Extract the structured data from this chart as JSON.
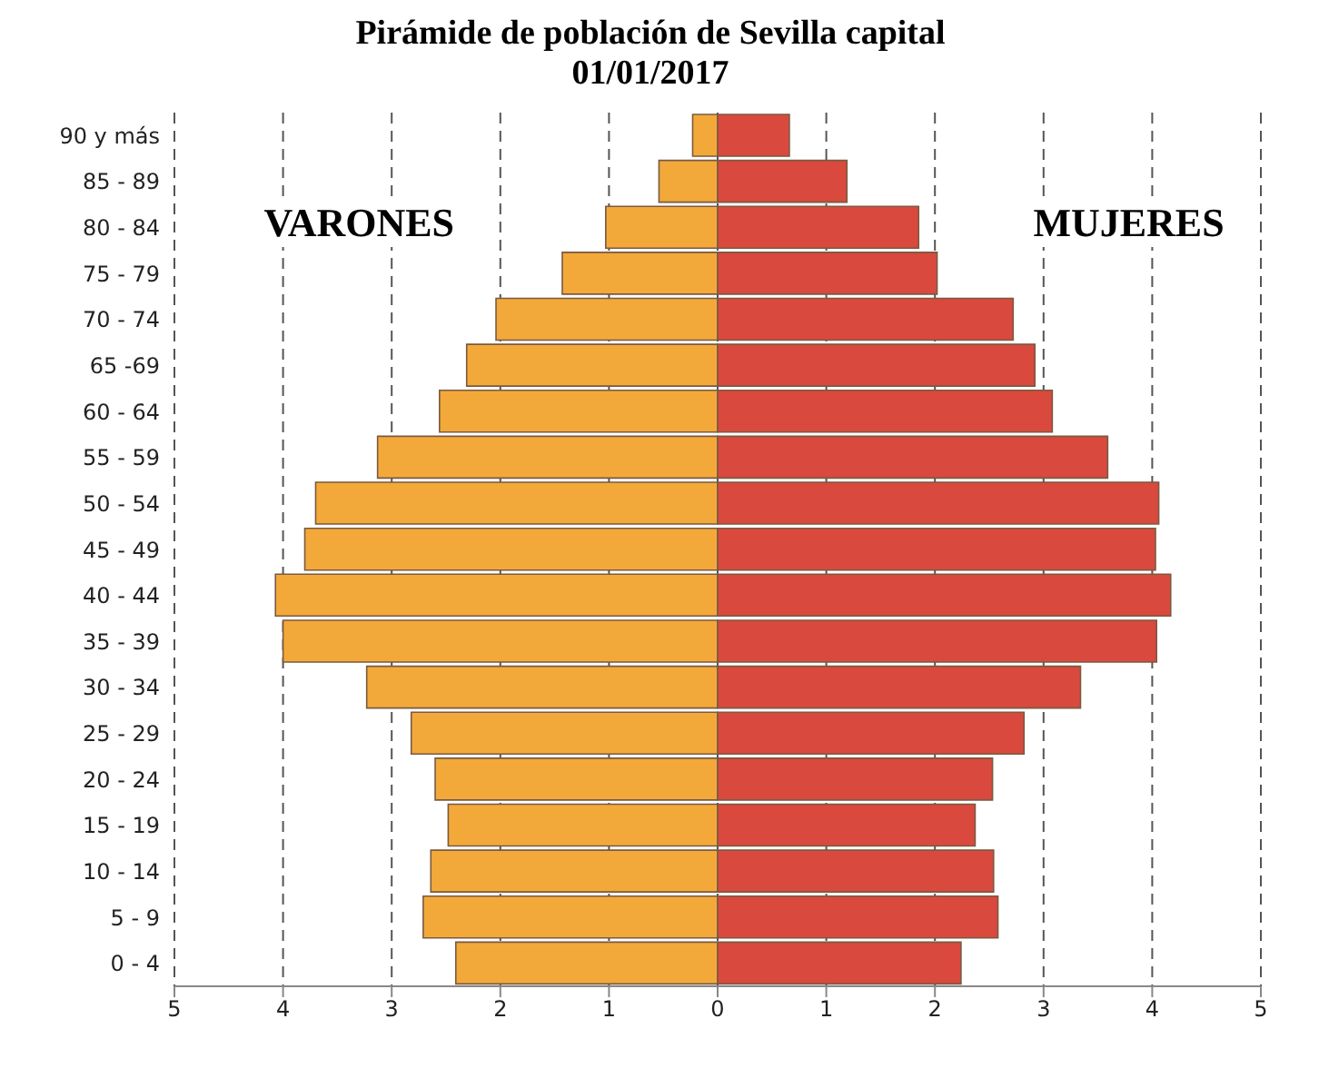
{
  "chart_data": {
    "type": "bar",
    "orientation": "horizontal",
    "stacked": true,
    "title": "Pirámide de población de Sevilla capital",
    "subtitle": "01/01/2017",
    "categories": [
      "90 y más",
      "85 - 89",
      "80 - 84",
      "75 - 79",
      "70 - 74",
      "65 -69",
      "60 - 64",
      "55 - 59",
      "50 - 54",
      "45 - 49",
      "40 - 44",
      "35 - 39",
      "30 - 34",
      "25 - 29",
      "20 - 24",
      "15 - 19",
      "10 - 14",
      "5 - 9",
      "0 - 4"
    ],
    "series": [
      {
        "name": "VARONES",
        "color": "#f3a93a",
        "values": [
          -0.23,
          -0.54,
          -1.03,
          -1.43,
          -2.04,
          -2.31,
          -2.56,
          -3.13,
          -3.7,
          -3.8,
          -4.07,
          -4.0,
          -3.23,
          -2.82,
          -2.6,
          -2.48,
          -2.64,
          -2.71,
          -2.41
        ]
      },
      {
        "name": "MUJERES",
        "color": "#d9493e",
        "values": [
          0.66,
          1.19,
          1.85,
          2.02,
          2.72,
          2.92,
          3.08,
          3.59,
          4.06,
          4.03,
          4.17,
          4.04,
          3.34,
          2.82,
          2.53,
          2.37,
          2.54,
          2.58,
          2.24
        ]
      }
    ],
    "xlim": [
      -5,
      5
    ],
    "xticks": [
      {
        "value": -5,
        "label": "5"
      },
      {
        "value": -4,
        "label": "4"
      },
      {
        "value": -3,
        "label": "3"
      },
      {
        "value": -2,
        "label": "2"
      },
      {
        "value": -1,
        "label": "1"
      },
      0,
      1,
      2,
      3,
      4,
      5
    ],
    "grid": "x",
    "legend": false
  }
}
